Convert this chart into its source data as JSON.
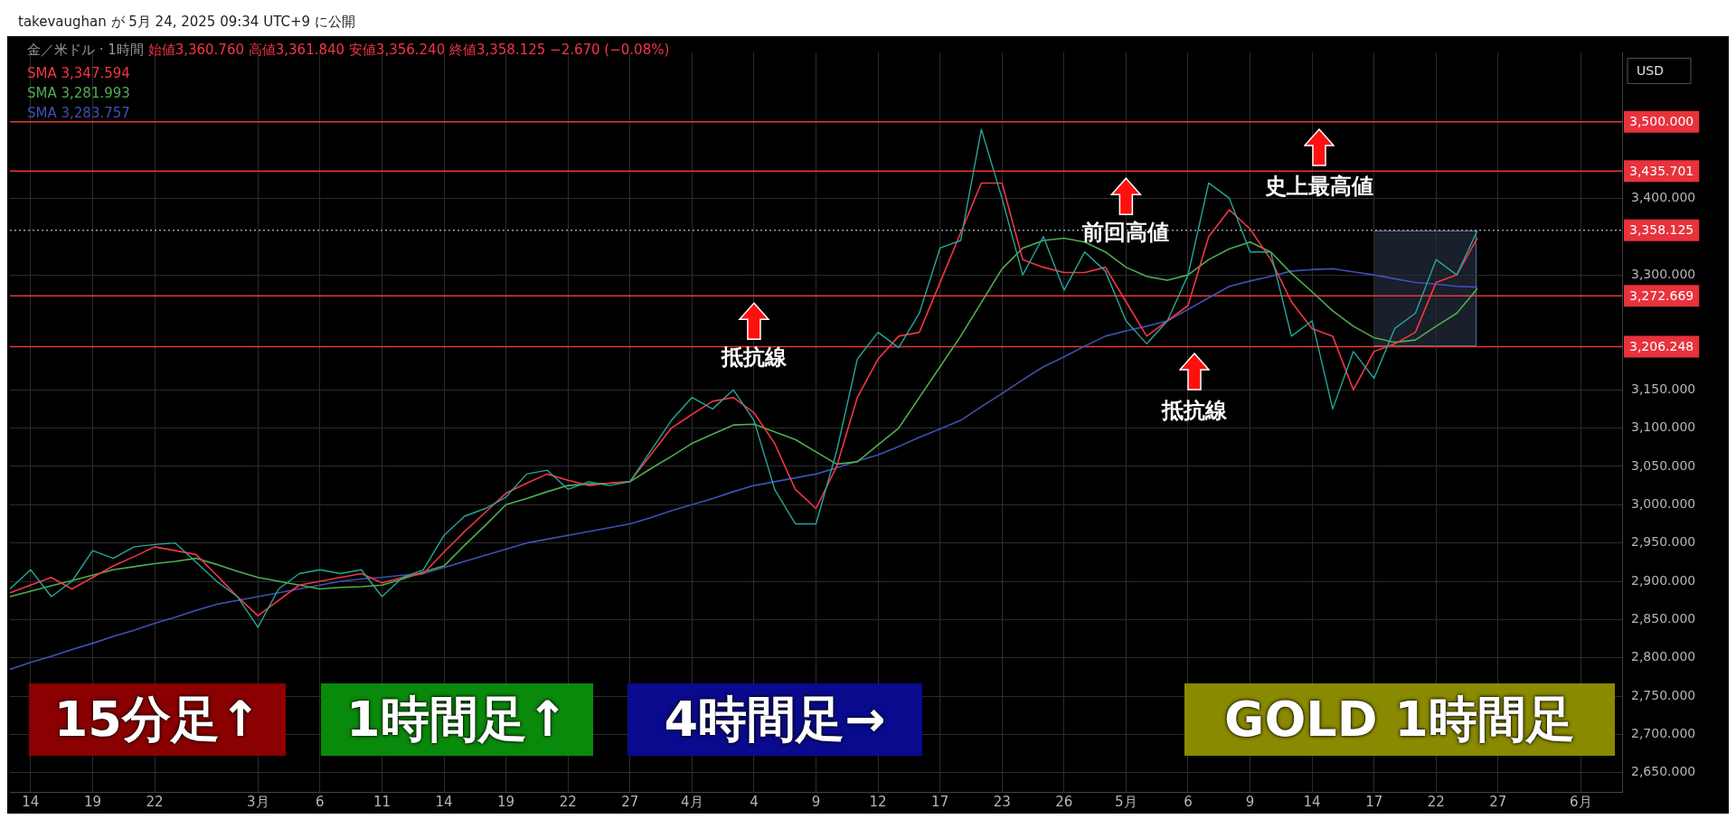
{
  "chart_data": {
    "type": "line",
    "title": "金／米ドル · 1時間",
    "subtitle": "始値3,360.760 高値3,361.840 安値3,356.240 終値3,358.125 −2.670 (−0.08%)",
    "ylabel": "USD",
    "annotations": [
      "takevaughan が 5月 24, 2025 09:34 UTC+9 に公開",
      "15分足↑",
      "1時間足↑",
      "4時間足→",
      "GOLD 1時間足",
      {
        "text": "抵抗線",
        "x": "4",
        "y": 3272.669
      },
      {
        "text": "前回高値",
        "x": "5月",
        "y": 3435.701
      },
      "史上最高値",
      "抵抗線"
    ],
    "categories": [
      null,
      "14",
      null,
      null,
      "19",
      null,
      null,
      "22",
      null,
      null,
      null,
      null,
      "3月",
      null,
      null,
      "6",
      null,
      null,
      "11",
      null,
      null,
      "14",
      null,
      null,
      "19",
      null,
      null,
      "22",
      null,
      null,
      "27",
      null,
      null,
      "4月",
      null,
      null,
      "4",
      null,
      null,
      "9",
      null,
      null,
      "12",
      null,
      null,
      "17",
      null,
      null,
      "23",
      null,
      null,
      "26",
      null,
      null,
      "5月",
      null,
      null,
      "6",
      null,
      null,
      "9",
      null,
      null,
      "14",
      null,
      null,
      "17",
      null,
      null,
      "22",
      null,
      null,
      "27",
      null,
      null,
      null,
      "6月",
      null,
      null
    ],
    "ylim": [
      2625,
      3590
    ],
    "yticks": [
      {
        "value": 2650,
        "label": "2,650.000"
      },
      {
        "value": 2700,
        "label": "2,700.000"
      },
      {
        "value": 2750,
        "label": "2,750.000"
      },
      {
        "value": 2800,
        "label": "2,800.000"
      },
      {
        "value": 2850,
        "label": "2,850.000"
      },
      {
        "value": 2900,
        "label": "2,900.000"
      },
      {
        "value": 2950,
        "label": "2,950.000"
      },
      {
        "value": 3000,
        "label": "3,000.000"
      },
      {
        "value": 3050,
        "label": "3,050.000"
      },
      {
        "value": 3100,
        "label": "3,100.000"
      },
      {
        "value": 3150,
        "label": "3,150.000"
      },
      {
        "value": 3300,
        "label": "3,300.000"
      },
      {
        "value": 3400,
        "label": "3,400.000"
      }
    ],
    "grid": true,
    "legend": "top left",
    "ref_lines": [
      {
        "axis": "y",
        "value": 3500,
        "label": "3,500.000",
        "color": "#e53935"
      },
      {
        "axis": "y",
        "value": 3435.701,
        "label": "3,435.701",
        "color": "#e53935"
      },
      {
        "axis": "y",
        "value": 3358.125,
        "label": "3,358.125",
        "color": "#9e9e9e",
        "line_style": "dotted"
      },
      {
        "axis": "y",
        "value": 3272.669,
        "label": "3,272.669",
        "color": "#e53935"
      },
      {
        "axis": "y",
        "value": 3206.248,
        "label": "3,206.248",
        "color": "#e53935"
      }
    ],
    "series": [
      {
        "type": "line",
        "color": "#26a69a",
        "values": [
          2890,
          2915,
          2880,
          2900,
          2940,
          2930,
          2945,
          2948,
          2950,
          2925,
          2900,
          2880,
          2840,
          2890,
          2910,
          2915,
          2910,
          2915,
          2880,
          2905,
          2915,
          2960,
          2985,
          2995,
          3010,
          3040,
          3045,
          3020,
          3030,
          3025,
          3030,
          3070,
          3110,
          3140,
          3125,
          3150,
          3110,
          3020,
          2975,
          2975,
          3070,
          3190,
          3225,
          3205,
          3250,
          3335,
          3345,
          3490,
          3400,
          3300,
          3350,
          3280,
          3330,
          3305,
          3240,
          3210,
          3240,
          3300,
          3420,
          3400,
          3330,
          3330,
          3220,
          3240,
          3125,
          3200,
          3165,
          3230,
          3250,
          3320,
          3300,
          3358,
          null,
          null,
          null,
          null,
          null,
          null,
          null
        ]
      },
      {
        "type": "line",
        "name": "SMA 3,347.594",
        "color": "#f23645",
        "values": [
          2885,
          2895,
          2905,
          2890,
          2905,
          2920,
          2932,
          2945,
          2940,
          2935,
          2908,
          2880,
          2855,
          2875,
          2895,
          2900,
          2905,
          2910,
          2898,
          2905,
          2910,
          2938,
          2965,
          2990,
          3015,
          3028,
          3040,
          3032,
          3025,
          3028,
          3030,
          3065,
          3100,
          3118,
          3135,
          3140,
          3120,
          3080,
          3020,
          2995,
          3050,
          3140,
          3190,
          3220,
          3225,
          3290,
          3355,
          3420,
          3420,
          3320,
          3310,
          3303,
          3303,
          3310,
          3265,
          3220,
          3240,
          3260,
          3350,
          3385,
          3360,
          3320,
          3265,
          3230,
          3220,
          3150,
          3200,
          3210,
          3225,
          3290,
          3300,
          3348,
          null,
          null,
          null,
          null,
          null,
          null,
          null
        ]
      },
      {
        "type": "line",
        "name": "SMA 3,281.993",
        "color": "#4caf50",
        "values": [
          2880,
          2887,
          2894,
          2901,
          2908,
          2915,
          2919,
          2923,
          2926,
          2930,
          2922,
          2913,
          2905,
          2900,
          2895,
          2890,
          2892,
          2893,
          2895,
          2903,
          2912,
          2920,
          2947,
          2973,
          3000,
          3008,
          3017,
          3025,
          3027,
          3028,
          3030,
          3047,
          3063,
          3080,
          3092,
          3104,
          3105,
          3095,
          3085,
          3069,
          3053,
          3056,
          3078,
          3100,
          3140,
          3180,
          3220,
          3264,
          3308,
          3335,
          3345,
          3348,
          3343,
          3330,
          3310,
          3298,
          3293,
          3300,
          3320,
          3334,
          3343,
          3330,
          3302,
          3278,
          3253,
          3233,
          3218,
          3212,
          3215,
          3233,
          3250,
          3282,
          null,
          null,
          null,
          null,
          null,
          null,
          null
        ]
      },
      {
        "type": "line",
        "name": "SMA 3,283.757",
        "color": "#3f51b5",
        "values": [
          2785,
          2794,
          2802,
          2811,
          2819,
          2828,
          2836,
          2845,
          2853,
          2862,
          2870,
          2875,
          2880,
          2885,
          2890,
          2895,
          2900,
          2903,
          2905,
          2908,
          2910,
          2918,
          2926,
          2934,
          2942,
          2950,
          2955,
          2960,
          2965,
          2970,
          2975,
          2983,
          2992,
          3000,
          3008,
          3017,
          3025,
          3030,
          3035,
          3040,
          3048,
          3057,
          3065,
          3076,
          3088,
          3099,
          3110,
          3128,
          3145,
          3163,
          3180,
          3193,
          3207,
          3220,
          3227,
          3233,
          3240,
          3255,
          3270,
          3285,
          3292,
          3298,
          3305,
          3307,
          3308,
          3304,
          3300,
          3295,
          3290,
          3288,
          3285,
          3284,
          null,
          null,
          null,
          null,
          null,
          null,
          null
        ]
      }
    ]
  }
}
